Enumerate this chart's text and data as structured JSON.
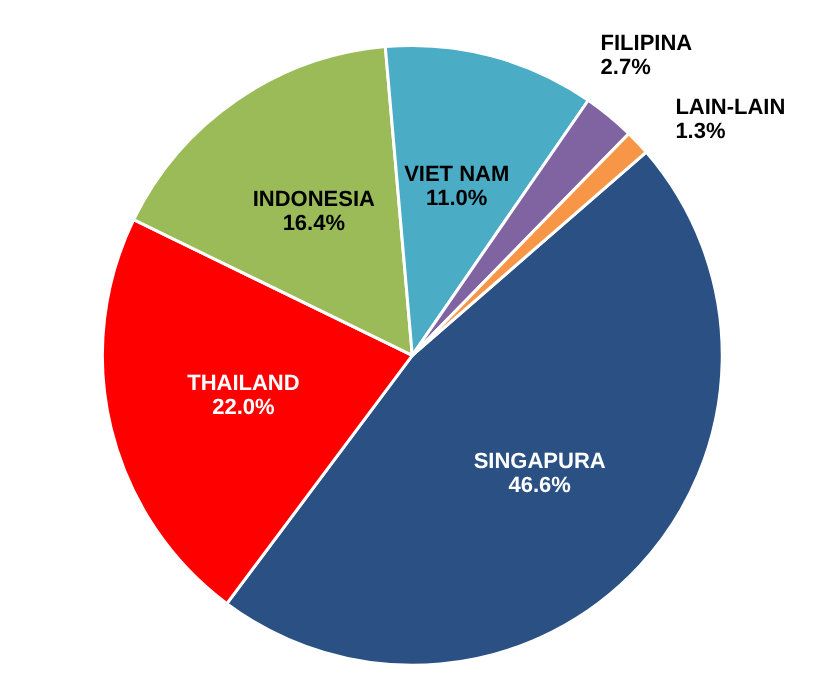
{
  "chart_data": {
    "type": "pie",
    "categories": [
      "SINGAPURA",
      "THAILAND",
      "INDONESIA",
      "VIET NAM",
      "FILIPINA",
      "LAIN-LAIN"
    ],
    "values": [
      46.6,
      22.0,
      16.4,
      11.0,
      2.7,
      1.3
    ],
    "colors": [
      "#2a5084",
      "#ff0000",
      "#9bbb59",
      "#4bacc6",
      "#8064a2",
      "#f79646"
    ],
    "value_labels": [
      "46.6%",
      "22.0%",
      "16.4%",
      "11.0%",
      "2.7%",
      "1.3%"
    ]
  }
}
